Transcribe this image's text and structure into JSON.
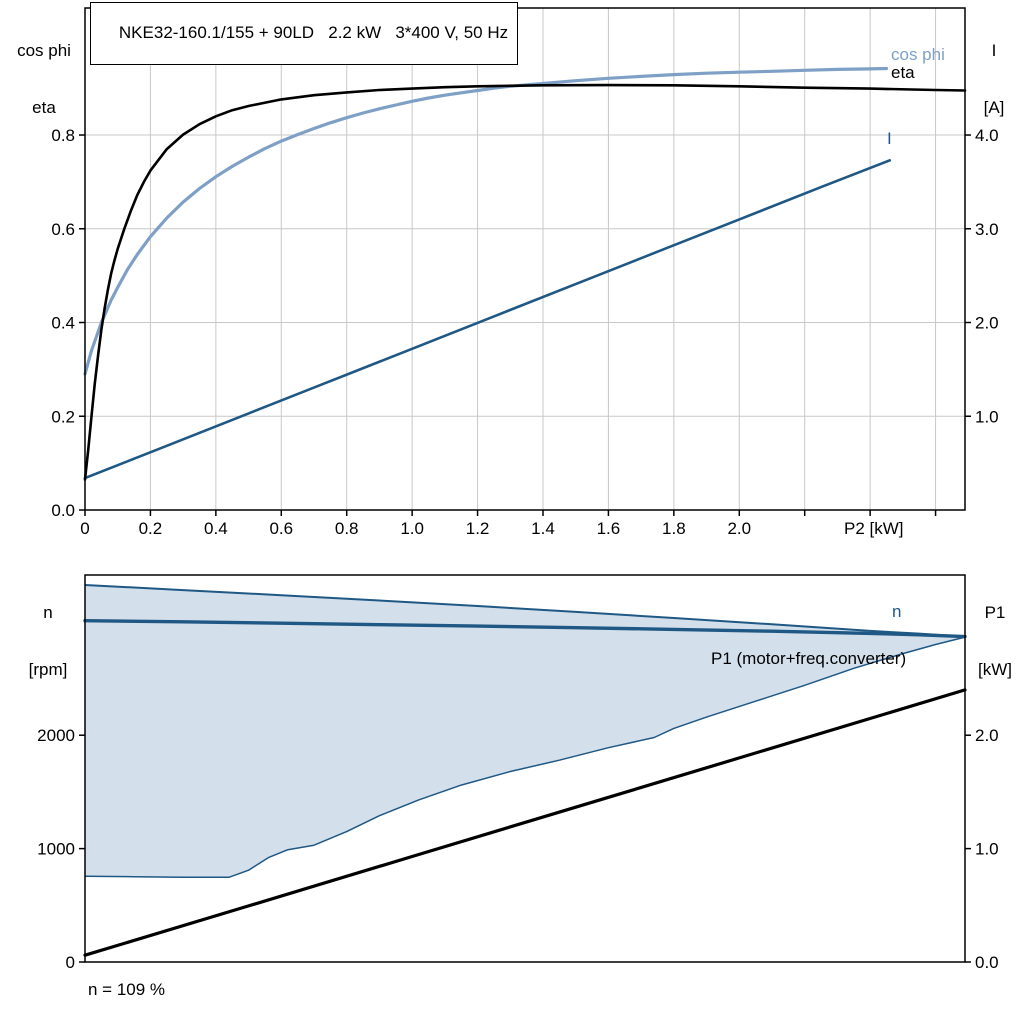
{
  "title": "NKE32-160.1/155 + 90LD   2.2 kW   3*400 V, 50 Hz",
  "colors": {
    "eta": "#000000",
    "cos_phi": "#7fa0c6",
    "current": "#1f5884",
    "speed": "#1f5884",
    "band_fill": "#d3dfeb",
    "band_edge": "#1f5884",
    "p1": "#000000",
    "grid": "#c8c8c8",
    "frame": "#000000"
  },
  "chart_data": [
    {
      "type": "line",
      "title": "NKE32-160.1/155 + 90LD   2.2 kW   3*400 V, 50 Hz",
      "x_axis": {
        "unit": "P2 [kW]",
        "min": 0,
        "max": 2.69,
        "tick_values": [
          0,
          0.2,
          0.4,
          0.6,
          0.8,
          1.0,
          1.2,
          1.4,
          1.6,
          1.8,
          2.0
        ],
        "tick_labels": [
          "0",
          "0.2",
          "0.4",
          "0.6",
          "0.8",
          "1.0",
          "1.2",
          "1.4",
          "1.6",
          "1.8",
          "2.0"
        ],
        "grid": [
          0.2,
          0.4,
          0.6,
          0.8,
          1.0,
          1.2,
          1.4,
          1.6,
          1.8,
          2.0,
          2.2,
          2.4,
          2.6
        ]
      },
      "left_axis": {
        "title_lines": [
          "cos phi",
          "eta"
        ],
        "min": 0,
        "max": 1.071,
        "tick_values": [
          0,
          0.2,
          0.4,
          0.6,
          0.8
        ],
        "tick_labels": [
          "0.0",
          "0.2",
          "0.4",
          "0.6",
          "0.8"
        ],
        "grid": [
          0.2,
          0.4,
          0.6,
          0.8
        ]
      },
      "right_axis": {
        "title_lines": [
          "I",
          "[A]"
        ],
        "min": 0,
        "max": 5.355,
        "tick_values": [
          1,
          2,
          3,
          4
        ],
        "tick_labels": [
          "1.0",
          "2.0",
          "3.0",
          "4.0"
        ]
      },
      "labels": {
        "cos_phi": "cos phi",
        "eta": "eta",
        "current": "I"
      },
      "series": [
        {
          "name": "I",
          "axis": "right",
          "color": "#1f5884",
          "points": [
            [
              0,
              0.34
            ],
            [
              0.25,
              0.685
            ],
            [
              0.5,
              1.03
            ],
            [
              0.75,
              1.375
            ],
            [
              1.0,
              1.72
            ],
            [
              1.25,
              2.065
            ],
            [
              1.5,
              2.41
            ],
            [
              1.75,
              2.755
            ],
            [
              2.0,
              3.1
            ],
            [
              2.25,
              3.445
            ],
            [
              2.46,
              3.73
            ]
          ]
        },
        {
          "name": "cos phi",
          "axis": "left",
          "color": "#7fa0c6",
          "points": [
            [
              0,
              0.29
            ],
            [
              0.02,
              0.34
            ],
            [
              0.05,
              0.4
            ],
            [
              0.08,
              0.448
            ],
            [
              0.1,
              0.475
            ],
            [
              0.13,
              0.513
            ],
            [
              0.16,
              0.545
            ],
            [
              0.2,
              0.583
            ],
            [
              0.25,
              0.623
            ],
            [
              0.3,
              0.657
            ],
            [
              0.35,
              0.686
            ],
            [
              0.4,
              0.711
            ],
            [
              0.45,
              0.733
            ],
            [
              0.5,
              0.753
            ],
            [
              0.55,
              0.771
            ],
            [
              0.6,
              0.787
            ],
            [
              0.65,
              0.801
            ],
            [
              0.7,
              0.814
            ],
            [
              0.75,
              0.826
            ],
            [
              0.8,
              0.837
            ],
            [
              0.85,
              0.847
            ],
            [
              0.9,
              0.856
            ],
            [
              0.95,
              0.864
            ],
            [
              1.0,
              0.872
            ],
            [
              1.05,
              0.879
            ],
            [
              1.1,
              0.885
            ],
            [
              1.15,
              0.89
            ],
            [
              1.2,
              0.895
            ],
            [
              1.25,
              0.9
            ],
            [
              1.3,
              0.904
            ],
            [
              1.35,
              0.907
            ],
            [
              1.4,
              0.91
            ],
            [
              1.5,
              0.916
            ],
            [
              1.6,
              0.921
            ],
            [
              1.7,
              0.925
            ],
            [
              1.8,
              0.929
            ],
            [
              1.9,
              0.932
            ],
            [
              2.0,
              0.934
            ],
            [
              2.1,
              0.936
            ],
            [
              2.2,
              0.938
            ],
            [
              2.3,
              0.94
            ],
            [
              2.4,
              0.941
            ],
            [
              2.45,
              0.942
            ]
          ]
        },
        {
          "name": "eta",
          "axis": "left",
          "color": "#000000",
          "points": [
            [
              0,
              0.065
            ],
            [
              0.01,
              0.13
            ],
            [
              0.02,
              0.2
            ],
            [
              0.03,
              0.27
            ],
            [
              0.04,
              0.33
            ],
            [
              0.05,
              0.385
            ],
            [
              0.06,
              0.43
            ],
            [
              0.07,
              0.47
            ],
            [
              0.08,
              0.505
            ],
            [
              0.09,
              0.532
            ],
            [
              0.1,
              0.557
            ],
            [
              0.12,
              0.6
            ],
            [
              0.14,
              0.638
            ],
            [
              0.16,
              0.672
            ],
            [
              0.18,
              0.7
            ],
            [
              0.2,
              0.724
            ],
            [
              0.25,
              0.77
            ],
            [
              0.3,
              0.801
            ],
            [
              0.35,
              0.823
            ],
            [
              0.4,
              0.84
            ],
            [
              0.45,
              0.853
            ],
            [
              0.5,
              0.862
            ],
            [
              0.6,
              0.876
            ],
            [
              0.7,
              0.885
            ],
            [
              0.8,
              0.891
            ],
            [
              0.9,
              0.896
            ],
            [
              1.0,
              0.899
            ],
            [
              1.1,
              0.902
            ],
            [
              1.2,
              0.904
            ],
            [
              1.4,
              0.906
            ],
            [
              1.6,
              0.9065
            ],
            [
              1.8,
              0.906
            ],
            [
              2.0,
              0.904
            ],
            [
              2.2,
              0.901
            ],
            [
              2.4,
              0.899
            ],
            [
              2.6,
              0.896
            ],
            [
              2.69,
              0.895
            ]
          ]
        }
      ]
    },
    {
      "type": "line",
      "x_axis": {
        "min": 0,
        "max": 2.69,
        "tick_values": [],
        "tick_labels": [],
        "grid": []
      },
      "left_axis": {
        "title_lines": [
          "n",
          "[rpm]"
        ],
        "min": 0,
        "max": 3413,
        "tick_values": [
          0,
          1000,
          2000
        ],
        "tick_labels": [
          "0",
          "1000",
          "2000"
        ]
      },
      "right_axis": {
        "title_lines": [
          "P1",
          "[kW]"
        ],
        "min": 0,
        "max": 3.413,
        "tick_values": [
          0,
          1,
          2
        ],
        "tick_labels": [
          "0.0",
          "1.0",
          "2.0"
        ]
      },
      "labels": {
        "n": "n",
        "p1": "P1 (motor+freq.converter)"
      },
      "note": "n = 109 %",
      "series": [
        {
          "name": "speed range",
          "type": "band",
          "axis": "left",
          "color": "#1f5884",
          "fill": "#d3dfeb",
          "upper": [
            [
              0,
              3325
            ],
            [
              0.3,
              3280
            ],
            [
              0.6,
              3235
            ],
            [
              0.9,
              3188
            ],
            [
              1.2,
              3140
            ],
            [
              1.5,
              3088
            ],
            [
              1.8,
              3034
            ],
            [
              2.1,
              2978
            ],
            [
              2.4,
              2920
            ],
            [
              2.55,
              2896
            ],
            [
              2.69,
              2870
            ]
          ],
          "lower": [
            [
              0,
              757
            ],
            [
              0.15,
              752
            ],
            [
              0.3,
              748
            ],
            [
              0.44,
              747
            ],
            [
              0.5,
              810
            ],
            [
              0.56,
              920
            ],
            [
              0.62,
              990
            ],
            [
              0.7,
              1030
            ],
            [
              0.8,
              1150
            ],
            [
              0.9,
              1290
            ],
            [
              1.02,
              1430
            ],
            [
              1.15,
              1560
            ],
            [
              1.3,
              1680
            ],
            [
              1.45,
              1780
            ],
            [
              1.6,
              1890
            ],
            [
              1.74,
              1980
            ],
            [
              1.8,
              2060
            ],
            [
              1.9,
              2160
            ],
            [
              2.05,
              2300
            ],
            [
              2.2,
              2440
            ],
            [
              2.35,
              2590
            ],
            [
              2.5,
              2720
            ],
            [
              2.6,
              2800
            ],
            [
              2.69,
              2865
            ]
          ]
        },
        {
          "name": "n",
          "axis": "left",
          "color": "#1f5884",
          "points": [
            [
              0,
              3010
            ],
            [
              0.3,
              3000
            ],
            [
              0.6,
              2988
            ],
            [
              0.9,
              2975
            ],
            [
              1.2,
              2962
            ],
            [
              1.5,
              2948
            ],
            [
              1.8,
              2933
            ],
            [
              2.1,
              2917
            ],
            [
              2.4,
              2898
            ],
            [
              2.55,
              2886
            ],
            [
              2.69,
              2870
            ]
          ]
        },
        {
          "name": "P1",
          "axis": "right",
          "color": "#000000",
          "points": [
            [
              0,
              0.06
            ],
            [
              0.5,
              0.495
            ],
            [
              1.0,
              0.93
            ],
            [
              1.5,
              1.365
            ],
            [
              2.0,
              1.8
            ],
            [
              2.69,
              2.4
            ]
          ]
        }
      ]
    }
  ]
}
